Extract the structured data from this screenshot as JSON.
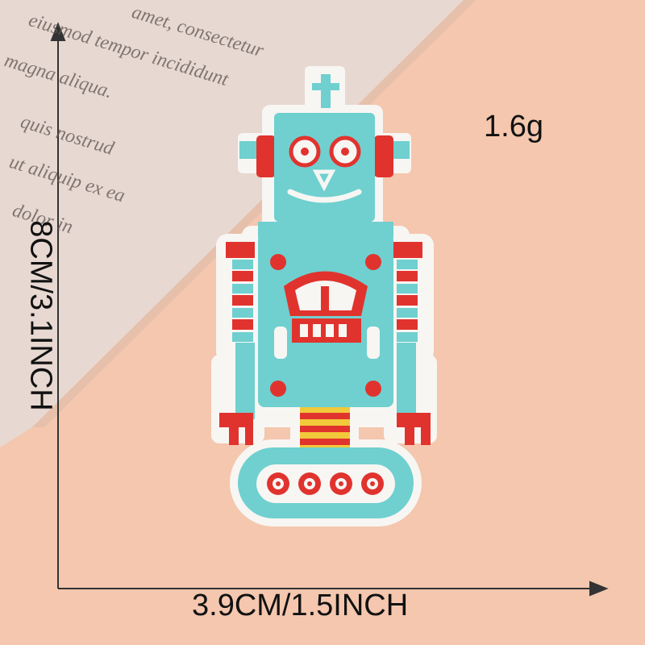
{
  "product": {
    "weight": "1.6g",
    "width_label": "3.9CM/1.5INCH",
    "height_label": "8CM/3.1INCH"
  },
  "paper_text": {
    "lines": [
      "amet, consectetur",
      "eiusmod tempor incididunt",
      "magna aliqua.",
      "quis nostrud",
      "ut aliquip ex ea",
      "dolor in"
    ]
  },
  "colors": {
    "background": "#f4c7ae",
    "paper": "#e7d8d1",
    "patch_teal": "#6fd0cf",
    "patch_red": "#e1332e",
    "patch_white": "#f7f6f3",
    "patch_yellow": "#f1c93b"
  },
  "icons": {
    "measure_arrows": "arrow-icon"
  }
}
